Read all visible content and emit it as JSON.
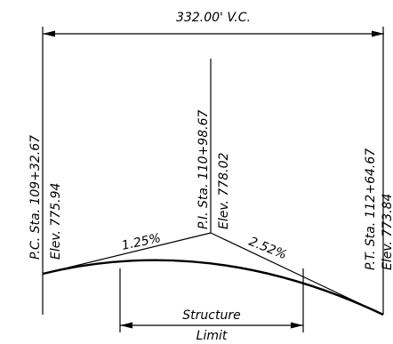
{
  "vertical_curve_length": "332.00' V.C.",
  "pc": {
    "station": "P.C. Sta. 109+32.67",
    "elevation": "Elev. 775.94"
  },
  "pi": {
    "station": "P.I. Sta. 110+98.67",
    "elevation": "Elev. 778.02"
  },
  "pt": {
    "station": "P.T. Sta. 112+64.67",
    "elevation": "Elev. 773.84"
  },
  "grades": {
    "incoming": "1.25%",
    "outgoing": "2.52%"
  },
  "structure": {
    "line1": "Structure",
    "line2": "Limit"
  }
}
